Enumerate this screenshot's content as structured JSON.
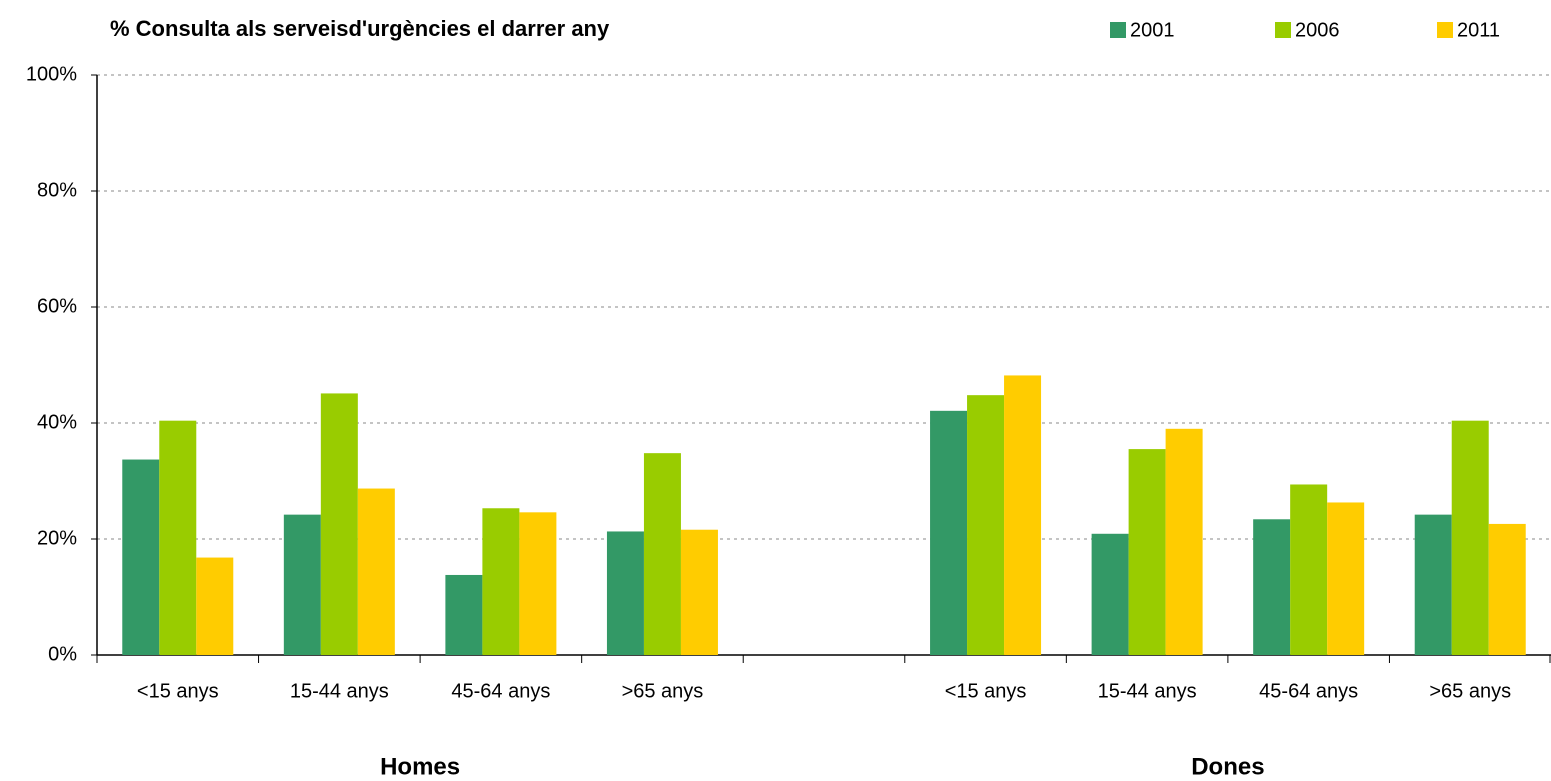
{
  "chart_data": {
    "type": "bar",
    "title": "% Consulta als serveisd'urgències el darrer any",
    "categories": [
      "<15 anys",
      "15-44 anys",
      "45-64 anys",
      ">65 anys",
      null,
      "<15 anys",
      "15-44 anys",
      "45-64 anys",
      ">65 anys"
    ],
    "groups": [
      "Homes",
      "Dones"
    ],
    "series": [
      {
        "name": "2001",
        "color": "#339966",
        "values": [
          33.7,
          24.2,
          13.8,
          21.3,
          null,
          42.1,
          20.9,
          23.4,
          24.2
        ]
      },
      {
        "name": "2006",
        "color": "#99cc00",
        "values": [
          40.4,
          45.1,
          25.3,
          34.8,
          null,
          44.8,
          35.5,
          29.4,
          40.4
        ]
      },
      {
        "name": "2011",
        "color": "#ffcc00",
        "values": [
          16.8,
          28.7,
          24.6,
          21.6,
          null,
          48.2,
          39.0,
          26.3,
          22.6
        ]
      }
    ],
    "ylim": [
      0,
      100
    ],
    "yticks": [
      {
        "value": 0,
        "label": "0%"
      },
      {
        "value": 20,
        "label": "20%"
      },
      {
        "value": 40,
        "label": "40%"
      },
      {
        "value": 60,
        "label": "60%"
      },
      {
        "value": 80,
        "label": "80%"
      },
      {
        "value": 100,
        "label": "100%"
      }
    ],
    "grid": true,
    "legend": "top-right"
  }
}
